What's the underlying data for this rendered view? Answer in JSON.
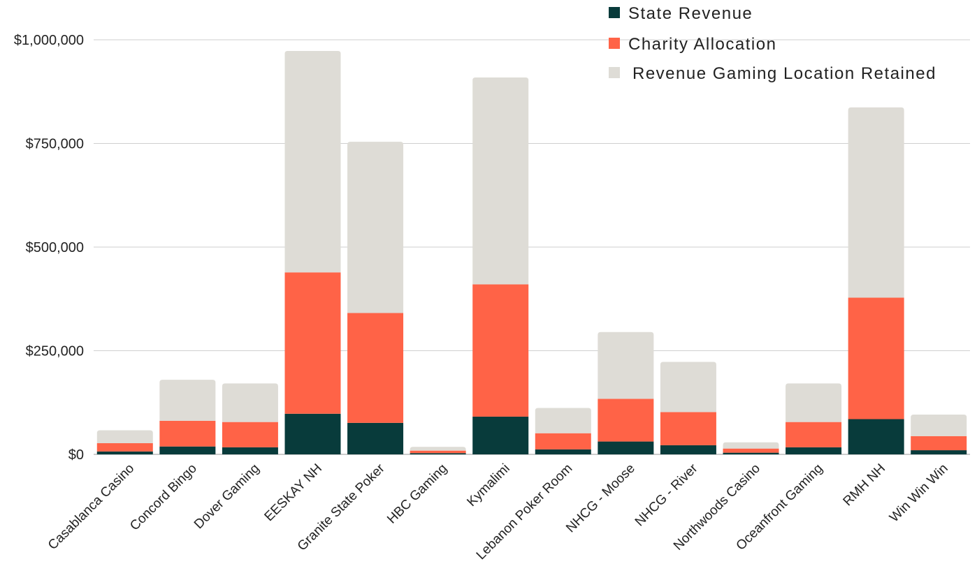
{
  "chart_data": {
    "type": "bar",
    "stacked": true,
    "title": "",
    "xlabel": "",
    "ylabel": "",
    "ylim": [
      0,
      1000000
    ],
    "y_ticks": [
      0,
      250000,
      500000,
      750000,
      1000000
    ],
    "y_tick_labels": [
      "$0",
      "$250,000",
      "$500,000",
      "$750,000",
      "$1,000,000"
    ],
    "grid": true,
    "legend_position": "top-right",
    "categories": [
      "Casablanca Casino",
      "Concord Bingo",
      "Dover Gaming",
      "EESKAY NH",
      "Granite State Poker",
      "HBC Gaming",
      "Kymalimi",
      "Lebanon Poker Room",
      "NHCG - Moose",
      "NHCG - River",
      "Northwoods Casino",
      "Oceanfront Gaming",
      "RMH NH",
      "Win Win Win"
    ],
    "series": [
      {
        "name": "State Revenue",
        "color": "#083b3b",
        "values": [
          7000,
          19000,
          17000,
          98000,
          76000,
          3000,
          91000,
          12000,
          31000,
          22000,
          4000,
          17000,
          85000,
          10000
        ]
      },
      {
        "name": "Charity Allocation",
        "color": "#ff6347",
        "values": [
          20000,
          62000,
          61000,
          341000,
          265000,
          6000,
          319000,
          39000,
          103000,
          80000,
          10000,
          61000,
          293000,
          34000
        ]
      },
      {
        "name": "Revenue Gaming Location Retained",
        "color": "#dedcd6",
        "values": [
          31000,
          99000,
          93000,
          534000,
          413000,
          9000,
          499000,
          61000,
          161000,
          121000,
          15000,
          93000,
          459000,
          52000
        ]
      }
    ]
  }
}
